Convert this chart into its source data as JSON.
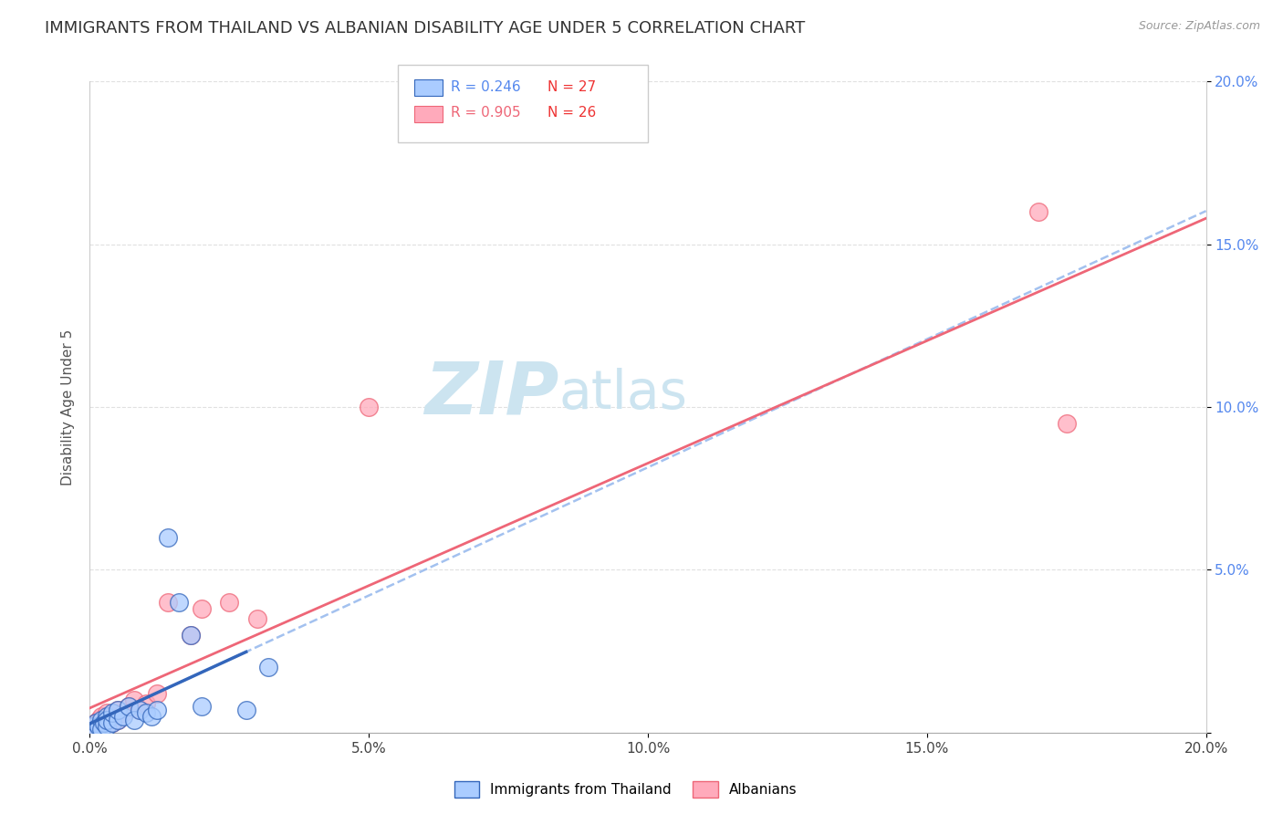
{
  "title": "IMMIGRANTS FROM THAILAND VS ALBANIAN DISABILITY AGE UNDER 5 CORRELATION CHART",
  "source": "Source: ZipAtlas.com",
  "ylabel": "Disability Age Under 5",
  "xlim": [
    0,
    0.2
  ],
  "ylim": [
    0,
    0.2
  ],
  "xticks": [
    0.0,
    0.05,
    0.1,
    0.15,
    0.2
  ],
  "yticks": [
    0.0,
    0.05,
    0.1,
    0.15,
    0.2
  ],
  "xtick_labels": [
    "0.0%",
    "5.0%",
    "10.0%",
    "15.0%",
    "20.0%"
  ],
  "ytick_labels": [
    "",
    "5.0%",
    "10.0%",
    "15.0%",
    "20.0%"
  ],
  "thailand_x": [
    0.0005,
    0.001,
    0.001,
    0.0015,
    0.002,
    0.002,
    0.0025,
    0.003,
    0.003,
    0.003,
    0.004,
    0.004,
    0.005,
    0.005,
    0.006,
    0.007,
    0.008,
    0.009,
    0.01,
    0.011,
    0.012,
    0.014,
    0.016,
    0.018,
    0.02,
    0.028,
    0.032
  ],
  "thailand_y": [
    0.002,
    0.001,
    0.003,
    0.002,
    0.004,
    0.001,
    0.003,
    0.005,
    0.002,
    0.004,
    0.003,
    0.006,
    0.004,
    0.007,
    0.005,
    0.008,
    0.004,
    0.007,
    0.006,
    0.005,
    0.007,
    0.06,
    0.04,
    0.03,
    0.008,
    0.007,
    0.02
  ],
  "albanian_x": [
    0.0005,
    0.001,
    0.001,
    0.0015,
    0.002,
    0.002,
    0.003,
    0.003,
    0.004,
    0.004,
    0.005,
    0.005,
    0.006,
    0.007,
    0.008,
    0.009,
    0.01,
    0.012,
    0.014,
    0.018,
    0.02,
    0.025,
    0.03,
    0.05,
    0.17,
    0.175
  ],
  "albanian_y": [
    0.001,
    0.002,
    0.003,
    0.004,
    0.003,
    0.005,
    0.004,
    0.006,
    0.005,
    0.003,
    0.007,
    0.004,
    0.006,
    0.008,
    0.01,
    0.007,
    0.009,
    0.012,
    0.04,
    0.03,
    0.038,
    0.04,
    0.035,
    0.1,
    0.16,
    0.095
  ],
  "thailand_color": "#aaccff",
  "albanian_color": "#ffaabb",
  "thailand_line_color": "#3366bb",
  "albanian_line_color": "#ee6677",
  "thailand_dash_color": "#99bbee",
  "grid_color": "#dddddd",
  "watermark_zip": "ZIP",
  "watermark_atlas": "atlas",
  "watermark_color": "#cce4f0",
  "background_color": "#ffffff",
  "title_fontsize": 13,
  "axis_label_fontsize": 11,
  "tick_fontsize": 11,
  "tick_color_right": "#5588ee",
  "r1_color": "#5588ee",
  "n1_color": "#ee3333",
  "r2_color": "#ee6677",
  "n2_color": "#ee3333",
  "legend_r1": "R = 0.246",
  "legend_n1": "N = 27",
  "legend_r2": "R = 0.905",
  "legend_n2": "N = 26",
  "legend_color1": "#aaccff",
  "legend_color2": "#ffaabb"
}
